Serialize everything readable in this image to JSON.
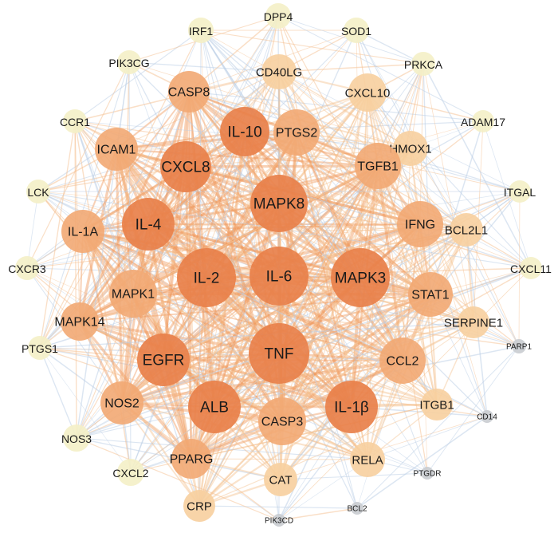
{
  "network": {
    "colors": {
      "background": "#ffffff",
      "node_high": "#e8804a",
      "node_mid": "#f2a873",
      "node_low": "#f7cf9e",
      "node_outer": "#f4f0c6",
      "node_peripheral": "#c9ccd0",
      "edge_strong": "#ef9a5e",
      "edge_medium": "#f5c08f",
      "edge_weak": "#b9cde6"
    },
    "nodes": [
      {
        "id": "MAPK8",
        "label": "MAPK8",
        "tier": "high"
      },
      {
        "id": "IL-6",
        "label": "IL-6",
        "tier": "high"
      },
      {
        "id": "IL-2",
        "label": "IL-2",
        "tier": "high"
      },
      {
        "id": "MAPK3",
        "label": "MAPK3",
        "tier": "high"
      },
      {
        "id": "TNF",
        "label": "TNF",
        "tier": "high"
      },
      {
        "id": "IL-10",
        "label": "IL-10",
        "tier": "high"
      },
      {
        "id": "CXCL8",
        "label": "CXCL8",
        "tier": "high"
      },
      {
        "id": "IL-4",
        "label": "IL-4",
        "tier": "high"
      },
      {
        "id": "EGFR",
        "label": "EGFR",
        "tier": "high"
      },
      {
        "id": "ALB",
        "label": "ALB",
        "tier": "high"
      },
      {
        "id": "IL-1B",
        "label": "IL-1β",
        "tier": "high"
      },
      {
        "id": "PTGS2",
        "label": "PTGS2",
        "tier": "mid"
      },
      {
        "id": "TGFB1",
        "label": "TGFB1",
        "tier": "mid"
      },
      {
        "id": "IFNG",
        "label": "IFNG",
        "tier": "mid"
      },
      {
        "id": "STAT1",
        "label": "STAT1",
        "tier": "mid"
      },
      {
        "id": "CCL2",
        "label": "CCL2",
        "tier": "mid"
      },
      {
        "id": "CASP3",
        "label": "CASP3",
        "tier": "mid"
      },
      {
        "id": "MAPK1",
        "label": "MAPK1",
        "tier": "mid"
      },
      {
        "id": "IL-1A",
        "label": "IL-1A",
        "tier": "mid"
      },
      {
        "id": "ICAM1",
        "label": "ICAM1",
        "tier": "mid"
      },
      {
        "id": "CASP8",
        "label": "CASP8",
        "tier": "mid"
      },
      {
        "id": "NOS2",
        "label": "NOS2",
        "tier": "mid"
      },
      {
        "id": "MAPK14",
        "label": "MAPK14",
        "tier": "mid"
      },
      {
        "id": "PPARG",
        "label": "PPARG",
        "tier": "mid"
      },
      {
        "id": "CD40LG",
        "label": "CD40LG",
        "tier": "low"
      },
      {
        "id": "CXCL10",
        "label": "CXCL10",
        "tier": "low"
      },
      {
        "id": "HMOX1",
        "label": "HMOX1",
        "tier": "low"
      },
      {
        "id": "BCL2L1",
        "label": "BCL2L1",
        "tier": "low"
      },
      {
        "id": "SERPINE1",
        "label": "SERPINE1",
        "tier": "low"
      },
      {
        "id": "ITGB1",
        "label": "ITGB1",
        "tier": "low"
      },
      {
        "id": "RELA",
        "label": "RELA",
        "tier": "low"
      },
      {
        "id": "CAT",
        "label": "CAT",
        "tier": "low"
      },
      {
        "id": "CRP",
        "label": "CRP",
        "tier": "low"
      },
      {
        "id": "CXCL2",
        "label": "CXCL2",
        "tier": "outer"
      },
      {
        "id": "NOS3",
        "label": "NOS3",
        "tier": "outer"
      },
      {
        "id": "PTGS1",
        "label": "PTGS1",
        "tier": "outer"
      },
      {
        "id": "CXCR3",
        "label": "CXCR3",
        "tier": "outer"
      },
      {
        "id": "LCK",
        "label": "LCK",
        "tier": "outer"
      },
      {
        "id": "CCR1",
        "label": "CCR1",
        "tier": "outer"
      },
      {
        "id": "PIK3CG",
        "label": "PIK3CG",
        "tier": "outer"
      },
      {
        "id": "IRF1",
        "label": "IRF1",
        "tier": "outer"
      },
      {
        "id": "DPP4",
        "label": "DPP4",
        "tier": "outer"
      },
      {
        "id": "SOD1",
        "label": "SOD1",
        "tier": "outer"
      },
      {
        "id": "PRKCA",
        "label": "PRKCA",
        "tier": "outer"
      },
      {
        "id": "ADAM17",
        "label": "ADAM17",
        "tier": "outer"
      },
      {
        "id": "ITGAL",
        "label": "ITGAL",
        "tier": "outer"
      },
      {
        "id": "CXCL11",
        "label": "CXCL11",
        "tier": "outer"
      },
      {
        "id": "PARP1",
        "label": "PARP1",
        "tier": "peripheral"
      },
      {
        "id": "CD14",
        "label": "CD14",
        "tier": "peripheral"
      },
      {
        "id": "PTGDR",
        "label": "PTGDR",
        "tier": "peripheral"
      },
      {
        "id": "BCL2",
        "label": "BCL2",
        "tier": "peripheral"
      },
      {
        "id": "PIK3CD",
        "label": "PIK3CD",
        "tier": "peripheral"
      }
    ]
  }
}
